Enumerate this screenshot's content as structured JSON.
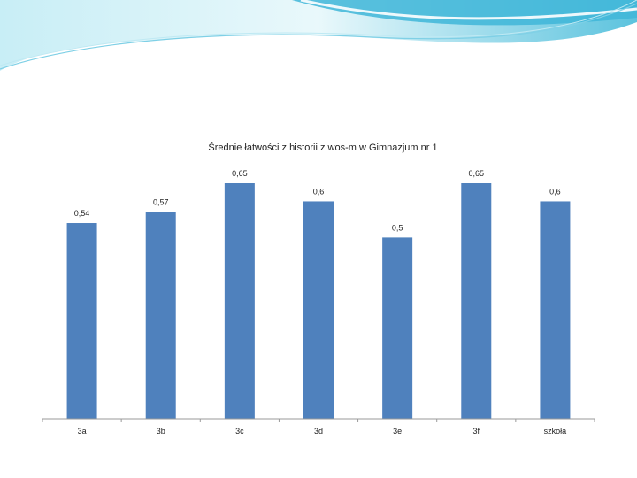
{
  "chart_data": {
    "type": "bar",
    "title": "Średnie łatwości z historii z wos-m w Gimnazjum nr 1",
    "categories": [
      "3a",
      "3b",
      "3c",
      "3d",
      "3e",
      "3f",
      "szkoła"
    ],
    "values": [
      0.54,
      0.57,
      0.65,
      0.6,
      0.5,
      0.65,
      0.6
    ],
    "data_labels": [
      "0,54",
      "0,57",
      "0,65",
      "0,6",
      "0,5",
      "0,65",
      "0,6"
    ],
    "xlabel": "",
    "ylabel": "",
    "ylim": [
      0,
      0.65
    ],
    "grid": false,
    "legend": "none",
    "bar_color": "#4f81bd"
  },
  "colors": {
    "wave_light": "#bfe9f3",
    "wave_mid": "#7fd0e6",
    "wave_dark": "#3bb3d6"
  }
}
